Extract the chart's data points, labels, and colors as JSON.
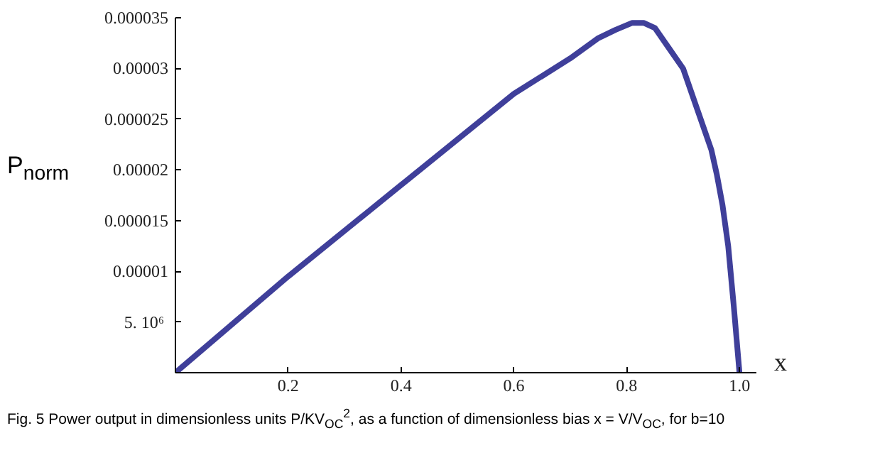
{
  "chart_data": {
    "type": "line",
    "xlabel": "x",
    "ylabel": "P$_{norm}$",
    "annotations": [
      "Fig. 5 Power output in dimensionless units P/KV$_{OC}$$^{2}$, as a function of dimensionless bias x = V/V$_{OC}$, for b=10"
    ],
    "x": [
      0,
      0.2,
      0.4,
      0.6,
      0.7,
      0.75,
      0.78,
      0.81,
      0.83,
      0.85,
      0.875,
      0.9,
      0.925,
      0.95,
      0.96,
      0.97,
      0.98,
      0.99,
      1.0
    ],
    "series": [
      {
        "color": "#3f3f9a",
        "values": [
          0,
          9.5e-06,
          1.85e-05,
          2.75e-05,
          3.1e-05,
          3.3e-05,
          3.38e-05,
          3.45e-05,
          3.45e-05,
          3.4e-05,
          3.2e-05,
          3e-05,
          2.6e-05,
          2.2e-05,
          1.95e-05,
          1.65e-05,
          1.25e-05,
          6.5e-06,
          0
        ]
      }
    ],
    "xlim": [
      0,
      1.03
    ],
    "ylim": [
      0,
      3.5e-05
    ],
    "xticks": [
      {
        "value": 0,
        "label": null
      },
      {
        "value": 0.2,
        "label": "0.2"
      },
      {
        "value": 0.4,
        "label": "0.4"
      },
      {
        "value": 0.6,
        "label": "0.6"
      },
      {
        "value": 0.8,
        "label": "0.8"
      },
      {
        "value": 1.0,
        "label": "1.0"
      }
    ],
    "yticks": [
      {
        "value": 0,
        "label": null
      },
      {
        "value": 5e-06,
        "label": "5.  10⁶"
      },
      {
        "value": 1e-05,
        "label": "0.00001"
      },
      {
        "value": 1.5e-05,
        "label": "0.000015"
      },
      {
        "value": 2e-05,
        "label": "0.00002"
      },
      {
        "value": 2.5e-05,
        "label": "0.000025"
      },
      {
        "value": 3e-05,
        "label": "0.00003"
      },
      {
        "value": 3.5e-05,
        "label": "0.000035"
      }
    ],
    "grid": false,
    "marker": "none",
    "line_style": "solid"
  }
}
